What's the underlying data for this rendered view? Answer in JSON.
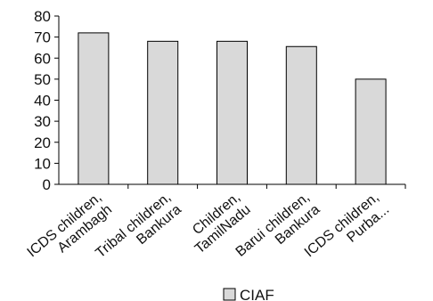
{
  "chart_data": {
    "type": "bar",
    "categories": [
      [
        "ICDS children,",
        "Arambagh"
      ],
      [
        "Tribal children,",
        "Bankura"
      ],
      [
        "Children,",
        "TamilNadu"
      ],
      [
        "Barui children,",
        "Bankura"
      ],
      [
        "ICDS children,",
        "Purba..."
      ]
    ],
    "series": [
      {
        "name": "CIAF",
        "values": [
          72,
          68,
          68,
          65.5,
          50
        ]
      }
    ],
    "ylim": [
      0,
      80
    ],
    "yticks": [
      0,
      10,
      20,
      30,
      40,
      50,
      60,
      70,
      80
    ],
    "grid": false,
    "legend": "bottom-center",
    "colors": {
      "bar_fill": "#d9d9d9",
      "bar_stroke": "#000000",
      "axis": "#000000"
    }
  }
}
